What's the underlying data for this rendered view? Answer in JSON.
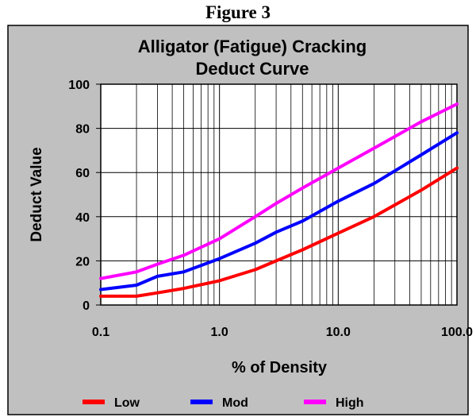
{
  "figure_label": "Figure 3",
  "chart_data": {
    "type": "line",
    "title": "Alligator (Fatigue) Cracking",
    "subtitle": "Deduct Curve",
    "xlabel": "% of Density",
    "ylabel": "Deduct Value",
    "x_scale": "log",
    "xlim": [
      0.1,
      100
    ],
    "ylim": [
      0,
      100
    ],
    "x_ticks": [
      {
        "value": 0.1,
        "label": "0.1"
      },
      {
        "value": 1,
        "label": "1.0"
      },
      {
        "value": 10,
        "label": "10.0"
      },
      {
        "value": 100,
        "label": "100.0"
      }
    ],
    "y_ticks": [
      {
        "value": 0,
        "label": "0"
      },
      {
        "value": 20,
        "label": "20"
      },
      {
        "value": 40,
        "label": "40"
      },
      {
        "value": 60,
        "label": "60"
      },
      {
        "value": 80,
        "label": "80"
      },
      {
        "value": 100,
        "label": "100"
      }
    ],
    "grid": true,
    "legend_position": "bottom",
    "colors": {
      "background": "#c0c0c0",
      "plot_background": "#ffffff",
      "grid": "#000000"
    },
    "series": [
      {
        "name": "Low",
        "color": "#ff0000",
        "x": [
          0.1,
          0.2,
          0.3,
          0.5,
          1,
          2,
          3,
          5,
          10,
          20,
          50,
          100
        ],
        "y": [
          4,
          4,
          5.5,
          7.5,
          11,
          16,
          20,
          25,
          32.5,
          40,
          52,
          62
        ]
      },
      {
        "name": "Mod",
        "color": "#0000ff",
        "x": [
          0.1,
          0.2,
          0.3,
          0.5,
          1,
          2,
          3,
          5,
          10,
          20,
          50,
          100
        ],
        "y": [
          7,
          9,
          13,
          15,
          21,
          28,
          33,
          38,
          47,
          55,
          68,
          78
        ]
      },
      {
        "name": "High",
        "color": "#ff00ff",
        "x": [
          0.1,
          0.2,
          0.3,
          0.5,
          1,
          2,
          3,
          5,
          10,
          20,
          50,
          100
        ],
        "y": [
          12,
          15,
          18.5,
          22.5,
          30,
          40,
          46,
          53,
          62,
          71,
          83,
          91
        ]
      }
    ]
  }
}
